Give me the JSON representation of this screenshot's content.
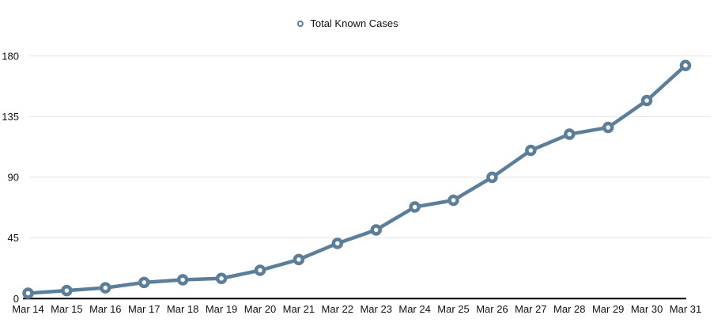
{
  "chart_data": {
    "type": "line",
    "legend": "Total Known Cases",
    "series": [
      {
        "name": "Total Known Cases",
        "values": [
          4,
          6,
          8,
          12,
          14,
          15,
          21,
          29,
          41,
          51,
          68,
          73,
          90,
          110,
          122,
          127,
          147,
          173
        ]
      }
    ],
    "categories": [
      "Mar 14",
      "Mar 15",
      "Mar 16",
      "Mar 17",
      "Mar 18",
      "Mar 19",
      "Mar 20",
      "Mar 21",
      "Mar 22",
      "Mar 23",
      "Mar 24",
      "Mar 25",
      "Mar 26",
      "Mar 27",
      "Mar 28",
      "Mar 29",
      "Mar 30",
      "Mar 31"
    ],
    "xlabel": "",
    "ylabel": "",
    "ylim": [
      0,
      180
    ],
    "yticks": [
      0,
      45,
      90,
      135,
      180
    ],
    "grid": true,
    "legend_position": "top-center",
    "colors": {
      "line": "#5b7e9b",
      "marker_fill": "#ffffff",
      "grid": "#e5e5e5",
      "axis": "#000000",
      "text": "#111111",
      "background": "#ffffff"
    }
  }
}
